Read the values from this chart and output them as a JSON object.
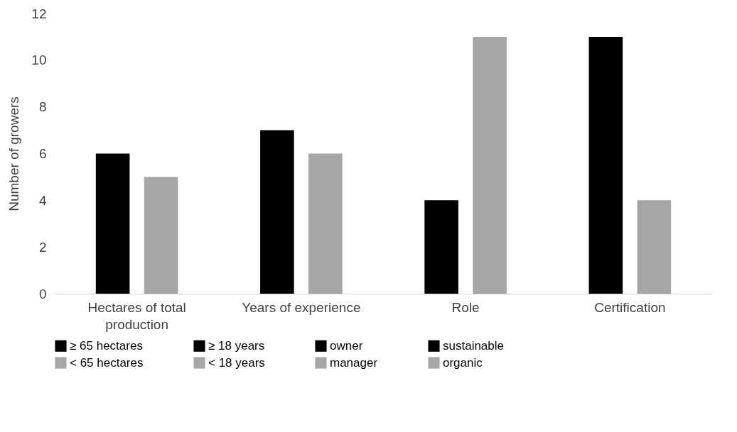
{
  "chart_data": {
    "type": "bar",
    "ylabel": "Number of growers",
    "categories": [
      "Hectares of total production",
      "Years of experience",
      "Role",
      "Certification"
    ],
    "series": [
      {
        "name": "≥ 65 hectares",
        "color": "#000000",
        "values": [
          6,
          null,
          null,
          null
        ]
      },
      {
        "name": "< 65 hectares",
        "color": "#a6a6a6",
        "values": [
          5,
          null,
          null,
          null
        ]
      },
      {
        "name": "≥ 18 years",
        "color": "#000000",
        "values": [
          null,
          7,
          null,
          null
        ]
      },
      {
        "name": "< 18 years",
        "color": "#a6a6a6",
        "values": [
          null,
          6,
          null,
          null
        ]
      },
      {
        "name": "owner",
        "color": "#000000",
        "values": [
          null,
          null,
          4,
          null
        ]
      },
      {
        "name": "manager",
        "color": "#a6a6a6",
        "values": [
          null,
          null,
          11,
          null
        ]
      },
      {
        "name": "sustainable",
        "color": "#000000",
        "values": [
          null,
          null,
          null,
          11
        ]
      },
      {
        "name": "organic",
        "color": "#a6a6a6",
        "values": [
          null,
          null,
          null,
          4
        ]
      }
    ],
    "ylim": [
      0,
      12
    ],
    "yticks": [
      0,
      2,
      4,
      6,
      8,
      10,
      12
    ],
    "grid": false,
    "legend": "bottom"
  }
}
